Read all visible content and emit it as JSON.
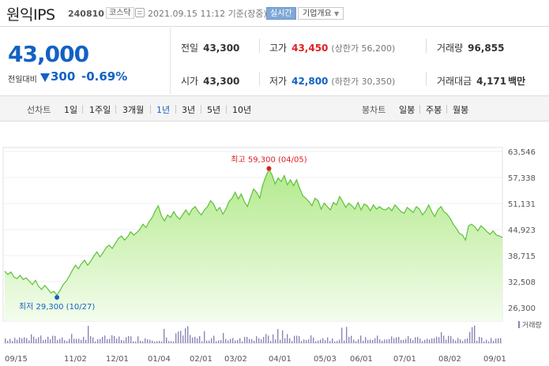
{
  "header": {
    "name": "원익IPS",
    "code": "240810",
    "market": "코스닥",
    "date_text": "2021.09.15 11:12 기준(장중)",
    "realtime_label": "실시간",
    "overview_label": "기업개요"
  },
  "price": {
    "current": "43,000",
    "change_label": "전일대비",
    "change_value": "300",
    "change_rate": "-0.69%"
  },
  "stats": {
    "prev_label": "전일",
    "prev_value": "43,300",
    "high_label": "고가",
    "high_value": "43,450",
    "high_sub": "(상한가 56,200)",
    "volume_label": "거래량",
    "volume_value": "96,855",
    "open_label": "시가",
    "open_value": "43,300",
    "low_label": "저가",
    "low_value": "42,800",
    "low_sub": "(하한가 30,350)",
    "amount_label": "거래대금",
    "amount_value": "4,171",
    "amount_unit": "백만"
  },
  "tabs": {
    "line_label": "선차트",
    "line_tabs": [
      "1일",
      "1주일",
      "3개월",
      "1년",
      "3년",
      "5년",
      "10년"
    ],
    "active_line_tab": "1년",
    "candle_label": "봉차트",
    "candle_tabs": [
      "일봉",
      "주봉",
      "월봉"
    ]
  },
  "colors": {
    "accent_blue": "#1261c4",
    "up_red": "#e02020",
    "line_green": "#5cc238",
    "area_green": "#b9ec97",
    "volume_bar": "#8a86b8"
  },
  "chart_data": {
    "type": "area",
    "y_ticks": [
      "63,546",
      "57,338",
      "51,131",
      "44,923",
      "38,715",
      "32,508",
      "26,300"
    ],
    "ylim": [
      26300,
      63546
    ],
    "x_ticks": [
      "09/15",
      "11/02",
      "12/01",
      "01/04",
      "02/01",
      "03/02",
      "04/01",
      "05/03",
      "06/01",
      "07/01",
      "08/02",
      "09/01"
    ],
    "max_annotation": {
      "label": "최고",
      "value": "59,300",
      "date": "(04/05)"
    },
    "min_annotation": {
      "label": "최저",
      "value": "29,300",
      "date": "(10/27)"
    },
    "volume_legend": "거래량",
    "prices": [
      35000,
      34200,
      34800,
      33600,
      33200,
      34000,
      33000,
      33400,
      32600,
      31800,
      32800,
      31400,
      30600,
      31600,
      30800,
      29800,
      30200,
      29300,
      30400,
      31800,
      32600,
      33800,
      35200,
      36400,
      35600,
      36800,
      37600,
      36400,
      37400,
      38600,
      39600,
      38400,
      39400,
      40600,
      41200,
      40400,
      41600,
      42800,
      43400,
      42400,
      43200,
      44400,
      43600,
      44200,
      45000,
      46200,
      45400,
      46800,
      47800,
      49400,
      50600,
      48200,
      47000,
      48400,
      47800,
      49200,
      48000,
      47400,
      48600,
      49600,
      48400,
      49800,
      50400,
      49200,
      48400,
      49600,
      50400,
      51800,
      51000,
      49400,
      50200,
      48600,
      49800,
      51600,
      52400,
      53800,
      52200,
      53400,
      51600,
      50400,
      52600,
      54600,
      53800,
      52400,
      55600,
      57600,
      59300,
      58000,
      55800,
      57200,
      56400,
      57800,
      55600,
      56800,
      55400,
      56800,
      54800,
      53000,
      52400,
      51600,
      50600,
      52400,
      51800,
      49800,
      51200,
      50400,
      49600,
      51400,
      50800,
      52800,
      51600,
      50200,
      51200,
      50600,
      49800,
      51400,
      49600,
      51000,
      50600,
      49400,
      50800,
      49800,
      50400,
      49800,
      49600,
      50200,
      49400,
      50800,
      50000,
      49200,
      48800,
      50200,
      49600,
      49000,
      50400,
      49800,
      48400,
      49400,
      50800,
      49200,
      48000,
      49600,
      50400,
      49200,
      48600,
      47600,
      46200,
      45200,
      44000,
      43600,
      42400,
      45800,
      46200,
      45600,
      44600,
      45800,
      45200,
      44400,
      43800,
      44600,
      43600,
      43400,
      43000
    ]
  }
}
